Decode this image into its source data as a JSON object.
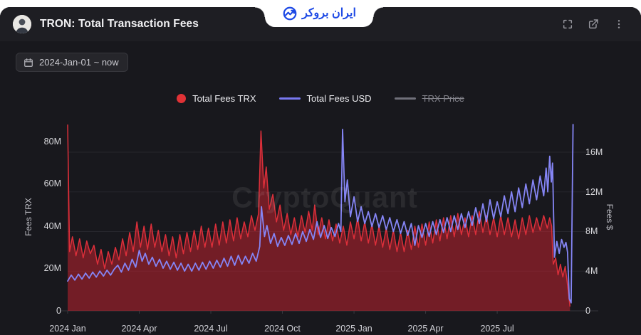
{
  "topbar": {
    "title": "TRON: Total Transaction Fees",
    "fullscreen_icon": "fullscreen",
    "share_icon": "open-external",
    "menu_icon": "kebab-menu"
  },
  "logo": {
    "text": "ایران بروکر"
  },
  "toolbar": {
    "date_range": "2024-Jan-01 ~ now"
  },
  "legend": {
    "items": [
      {
        "label": "Total Fees TRX",
        "color": "#e03236",
        "swatch": "dot",
        "disabled": false
      },
      {
        "label": "Total Fees USD",
        "color": "#7878f0",
        "swatch": "line",
        "disabled": false
      },
      {
        "label": "TRX Price",
        "color": "#70707a",
        "swatch": "line",
        "disabled": true
      }
    ]
  },
  "watermark": "CryptoQuant",
  "chart_data": {
    "type": "area+line",
    "title": "TRON: Total Transaction Fees",
    "grid": "horizontal-only",
    "x_axis": {
      "labels": [
        "2024 Jan",
        "2024 Apr",
        "2024 Jul",
        "2024 Oct",
        "2025 Jan",
        "2025 Apr",
        "2025 Jul"
      ],
      "label_positions_months": [
        0,
        3,
        6,
        9,
        12,
        15,
        18
      ],
      "range_months": [
        0,
        21.4
      ],
      "start_date": "2024-01-01"
    },
    "left_axis": {
      "title": "Fees TRX",
      "ticks": [
        0,
        20,
        40,
        60,
        80
      ],
      "tick_labels": [
        "0",
        "20M",
        "40M",
        "60M",
        "80M"
      ],
      "max": 90.4,
      "unit": "M TRX"
    },
    "right_axis": {
      "title": "Fees $",
      "ticks": [
        0,
        4,
        8,
        12,
        16
      ],
      "tick_labels": [
        "0",
        "4M",
        "8M",
        "12M",
        "16M"
      ],
      "max": 19.3,
      "unit": "M USD"
    },
    "series": [
      {
        "name": "Total Fees TRX",
        "axis": "left",
        "style": "area",
        "line_color": "#dc2f3a",
        "fill_color": "rgba(199,35,48,0.52)",
        "visible": true,
        "points": [
          [
            0,
            88
          ],
          [
            0.08,
            28
          ],
          [
            0.2,
            35
          ],
          [
            0.35,
            26
          ],
          [
            0.5,
            34
          ],
          [
            0.65,
            25
          ],
          [
            0.8,
            33
          ],
          [
            0.95,
            27
          ],
          [
            1.1,
            31
          ],
          [
            1.25,
            22
          ],
          [
            1.4,
            29
          ],
          [
            1.55,
            20
          ],
          [
            1.7,
            28
          ],
          [
            1.85,
            22
          ],
          [
            2.0,
            30
          ],
          [
            2.15,
            24
          ],
          [
            2.3,
            34
          ],
          [
            2.45,
            26
          ],
          [
            2.6,
            37
          ],
          [
            2.75,
            28
          ],
          [
            2.9,
            42
          ],
          [
            3.05,
            30
          ],
          [
            3.2,
            40
          ],
          [
            3.35,
            29
          ],
          [
            3.5,
            41
          ],
          [
            3.65,
            30
          ],
          [
            3.8,
            38
          ],
          [
            3.95,
            28
          ],
          [
            4.1,
            36
          ],
          [
            4.25,
            26
          ],
          [
            4.4,
            35
          ],
          [
            4.55,
            25
          ],
          [
            4.7,
            36
          ],
          [
            4.85,
            27
          ],
          [
            5.0,
            37
          ],
          [
            5.15,
            28
          ],
          [
            5.3,
            38
          ],
          [
            5.45,
            29
          ],
          [
            5.6,
            40
          ],
          [
            5.75,
            30
          ],
          [
            5.9,
            39
          ],
          [
            6.05,
            30
          ],
          [
            6.2,
            41
          ],
          [
            6.35,
            31
          ],
          [
            6.5,
            42
          ],
          [
            6.65,
            32
          ],
          [
            6.8,
            43
          ],
          [
            6.95,
            33
          ],
          [
            7.1,
            44
          ],
          [
            7.25,
            34
          ],
          [
            7.4,
            42
          ],
          [
            7.55,
            35
          ],
          [
            7.7,
            45
          ],
          [
            7.85,
            38
          ],
          [
            8.0,
            46
          ],
          [
            8.1,
            85
          ],
          [
            8.22,
            58
          ],
          [
            8.32,
            68
          ],
          [
            8.45,
            48
          ],
          [
            8.6,
            55
          ],
          [
            8.75,
            42
          ],
          [
            8.9,
            50
          ],
          [
            9.05,
            38
          ],
          [
            9.2,
            46
          ],
          [
            9.35,
            36
          ],
          [
            9.5,
            44
          ],
          [
            9.65,
            35
          ],
          [
            9.8,
            45
          ],
          [
            9.95,
            37
          ],
          [
            10.1,
            47
          ],
          [
            10.25,
            38
          ],
          [
            10.35,
            50
          ],
          [
            10.5,
            36
          ],
          [
            10.65,
            44
          ],
          [
            10.8,
            34
          ],
          [
            10.95,
            43
          ],
          [
            11.1,
            33
          ],
          [
            11.25,
            41
          ],
          [
            11.4,
            32
          ],
          [
            11.55,
            40
          ],
          [
            11.7,
            31
          ],
          [
            11.85,
            42
          ],
          [
            12.0,
            34
          ],
          [
            12.15,
            44
          ],
          [
            12.3,
            33
          ],
          [
            12.45,
            42
          ],
          [
            12.6,
            32
          ],
          [
            12.75,
            41
          ],
          [
            12.9,
            31
          ],
          [
            13.05,
            40
          ],
          [
            13.2,
            30
          ],
          [
            13.35,
            39
          ],
          [
            13.5,
            29
          ],
          [
            13.65,
            38
          ],
          [
            13.8,
            28
          ],
          [
            13.95,
            37
          ],
          [
            14.1,
            28
          ],
          [
            14.25,
            38
          ],
          [
            14.4,
            29
          ],
          [
            14.55,
            40
          ],
          [
            14.7,
            30
          ],
          [
            14.85,
            41
          ],
          [
            15.0,
            31
          ],
          [
            15.15,
            42
          ],
          [
            15.3,
            32
          ],
          [
            15.45,
            43
          ],
          [
            15.6,
            33
          ],
          [
            15.75,
            44
          ],
          [
            15.9,
            34
          ],
          [
            16.05,
            45
          ],
          [
            16.2,
            35
          ],
          [
            16.35,
            46
          ],
          [
            16.5,
            36
          ],
          [
            16.65,
            44
          ],
          [
            16.8,
            35
          ],
          [
            16.95,
            45
          ],
          [
            17.1,
            36
          ],
          [
            17.25,
            47
          ],
          [
            17.4,
            37
          ],
          [
            17.55,
            45
          ],
          [
            17.7,
            36
          ],
          [
            17.85,
            44
          ],
          [
            18.0,
            35
          ],
          [
            18.15,
            45
          ],
          [
            18.3,
            36
          ],
          [
            18.45,
            44
          ],
          [
            18.6,
            35
          ],
          [
            18.75,
            43
          ],
          [
            18.9,
            34
          ],
          [
            19.05,
            44
          ],
          [
            19.2,
            36
          ],
          [
            19.35,
            45
          ],
          [
            19.5,
            37
          ],
          [
            19.65,
            44
          ],
          [
            19.8,
            38
          ],
          [
            19.95,
            45
          ],
          [
            20.1,
            39
          ],
          [
            20.2,
            44
          ],
          [
            20.28,
            40
          ],
          [
            20.35,
            22
          ],
          [
            20.45,
            25
          ],
          [
            20.55,
            17
          ],
          [
            20.65,
            22
          ],
          [
            20.75,
            16
          ],
          [
            20.85,
            21
          ],
          [
            20.95,
            12
          ],
          [
            21.05,
            2
          ]
        ]
      },
      {
        "name": "Total Fees USD",
        "axis": "right",
        "style": "line",
        "line_color": "#8585f5",
        "visible": true,
        "points": [
          [
            0,
            3.0
          ],
          [
            0.15,
            3.6
          ],
          [
            0.3,
            3.1
          ],
          [
            0.45,
            3.7
          ],
          [
            0.6,
            3.2
          ],
          [
            0.75,
            3.8
          ],
          [
            0.9,
            3.3
          ],
          [
            1.05,
            3.9
          ],
          [
            1.2,
            3.4
          ],
          [
            1.35,
            4.0
          ],
          [
            1.5,
            3.5
          ],
          [
            1.65,
            4.1
          ],
          [
            1.8,
            3.6
          ],
          [
            1.95,
            4.2
          ],
          [
            2.1,
            4.6
          ],
          [
            2.25,
            3.9
          ],
          [
            2.4,
            4.8
          ],
          [
            2.55,
            4.1
          ],
          [
            2.7,
            5.2
          ],
          [
            2.85,
            4.4
          ],
          [
            3.0,
            6.1
          ],
          [
            3.12,
            5.0
          ],
          [
            3.25,
            5.8
          ],
          [
            3.4,
            4.7
          ],
          [
            3.55,
            5.4
          ],
          [
            3.7,
            4.5
          ],
          [
            3.85,
            5.2
          ],
          [
            4.0,
            4.3
          ],
          [
            4.15,
            5.0
          ],
          [
            4.3,
            4.2
          ],
          [
            4.45,
            4.9
          ],
          [
            4.6,
            4.1
          ],
          [
            4.75,
            4.8
          ],
          [
            4.9,
            4.0
          ],
          [
            5.05,
            4.7
          ],
          [
            5.2,
            4.0
          ],
          [
            5.35,
            4.8
          ],
          [
            5.5,
            4.1
          ],
          [
            5.65,
            4.9
          ],
          [
            5.8,
            4.2
          ],
          [
            5.95,
            5.0
          ],
          [
            6.1,
            4.3
          ],
          [
            6.25,
            5.1
          ],
          [
            6.4,
            4.4
          ],
          [
            6.55,
            5.3
          ],
          [
            6.7,
            4.5
          ],
          [
            6.85,
            5.5
          ],
          [
            7.0,
            4.6
          ],
          [
            7.15,
            5.6
          ],
          [
            7.3,
            4.7
          ],
          [
            7.45,
            5.5
          ],
          [
            7.6,
            4.8
          ],
          [
            7.75,
            5.8
          ],
          [
            7.9,
            5.0
          ],
          [
            8.05,
            6.5
          ],
          [
            8.12,
            10.5
          ],
          [
            8.25,
            7.5
          ],
          [
            8.35,
            8.6
          ],
          [
            8.5,
            6.8
          ],
          [
            8.65,
            7.8
          ],
          [
            8.8,
            6.5
          ],
          [
            8.95,
            7.4
          ],
          [
            9.1,
            6.6
          ],
          [
            9.25,
            7.6
          ],
          [
            9.4,
            6.7
          ],
          [
            9.55,
            7.8
          ],
          [
            9.7,
            6.8
          ],
          [
            9.85,
            8.0
          ],
          [
            10.0,
            7.0
          ],
          [
            10.15,
            8.2
          ],
          [
            10.3,
            7.2
          ],
          [
            10.45,
            9.0
          ],
          [
            10.6,
            7.4
          ],
          [
            10.75,
            8.6
          ],
          [
            10.9,
            7.3
          ],
          [
            11.05,
            8.4
          ],
          [
            11.2,
            7.5
          ],
          [
            11.35,
            8.8
          ],
          [
            11.45,
            8.0
          ],
          [
            11.52,
            18.3
          ],
          [
            11.62,
            11.0
          ],
          [
            11.72,
            13.2
          ],
          [
            11.85,
            9.5
          ],
          [
            12.0,
            11.5
          ],
          [
            12.15,
            9.0
          ],
          [
            12.3,
            10.5
          ],
          [
            12.45,
            8.8
          ],
          [
            12.6,
            10.0
          ],
          [
            12.75,
            8.5
          ],
          [
            12.9,
            9.8
          ],
          [
            13.05,
            8.4
          ],
          [
            13.2,
            9.6
          ],
          [
            13.35,
            8.2
          ],
          [
            13.5,
            9.4
          ],
          [
            13.65,
            8.0
          ],
          [
            13.8,
            9.2
          ],
          [
            13.95,
            7.8
          ],
          [
            14.1,
            9.0
          ],
          [
            14.25,
            7.6
          ],
          [
            14.4,
            8.8
          ],
          [
            14.55,
            6.6
          ],
          [
            14.7,
            8.6
          ],
          [
            14.85,
            7.4
          ],
          [
            15.0,
            8.8
          ],
          [
            15.15,
            7.5
          ],
          [
            15.3,
            9.0
          ],
          [
            15.45,
            7.7
          ],
          [
            15.6,
            9.2
          ],
          [
            15.75,
            7.9
          ],
          [
            15.9,
            9.4
          ],
          [
            16.05,
            8.0
          ],
          [
            16.2,
            9.6
          ],
          [
            16.35,
            8.2
          ],
          [
            16.5,
            9.8
          ],
          [
            16.65,
            8.4
          ],
          [
            16.8,
            10.0
          ],
          [
            16.95,
            8.6
          ],
          [
            17.1,
            10.4
          ],
          [
            17.25,
            8.8
          ],
          [
            17.4,
            10.8
          ],
          [
            17.55,
            9.0
          ],
          [
            17.7,
            11.2
          ],
          [
            17.85,
            9.3
          ],
          [
            18.0,
            11.0
          ],
          [
            18.15,
            9.5
          ],
          [
            18.3,
            11.6
          ],
          [
            18.45,
            9.8
          ],
          [
            18.6,
            12.0
          ],
          [
            18.75,
            10.0
          ],
          [
            18.9,
            12.4
          ],
          [
            19.05,
            10.4
          ],
          [
            19.2,
            12.8
          ],
          [
            19.35,
            10.8
          ],
          [
            19.5,
            13.2
          ],
          [
            19.65,
            11.2
          ],
          [
            19.8,
            13.6
          ],
          [
            19.95,
            11.6
          ],
          [
            20.05,
            14.4
          ],
          [
            20.12,
            12.0
          ],
          [
            20.2,
            15.6
          ],
          [
            20.27,
            13.0
          ],
          [
            20.32,
            14.9
          ],
          [
            20.4,
            5.4
          ],
          [
            20.5,
            7.0
          ],
          [
            20.6,
            5.8
          ],
          [
            20.7,
            7.2
          ],
          [
            20.8,
            6.4
          ],
          [
            20.88,
            6.9
          ],
          [
            20.95,
            5.9
          ],
          [
            21.02,
            1.2
          ],
          [
            21.1,
            0.8
          ],
          [
            21.18,
            18.8
          ]
        ]
      },
      {
        "name": "TRX Price",
        "axis": "right",
        "style": "line",
        "line_color": "#70707a",
        "visible": false,
        "points": []
      }
    ]
  }
}
